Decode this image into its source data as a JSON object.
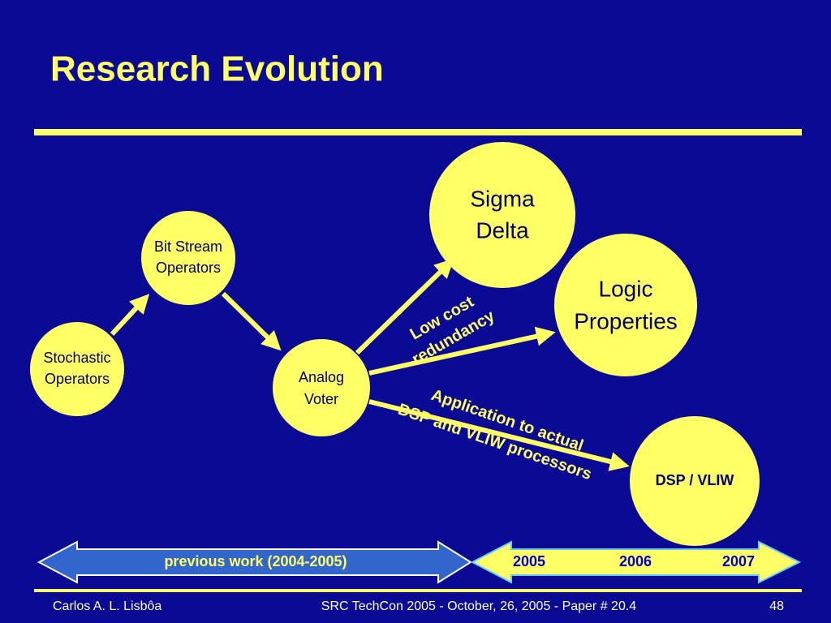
{
  "header": {
    "title": "Research Evolution"
  },
  "nodes": [
    {
      "lines": [
        "Stochastic",
        "Operators"
      ]
    },
    {
      "lines": [
        "Bit Stream",
        "Operators"
      ]
    },
    {
      "lines": [
        "Analog",
        "Voter"
      ]
    },
    {
      "lines": [
        "Sigma",
        "Delta"
      ]
    },
    {
      "lines": [
        "Logic",
        "Properties"
      ]
    },
    {
      "lines": [
        "DSP / VLIW"
      ]
    }
  ],
  "edge_labels": [
    {
      "lines": [
        "Low cost",
        "redundancy"
      ]
    },
    {
      "lines": [
        "Application to actual",
        "DSP and VLIW processors"
      ]
    }
  ],
  "timeline": {
    "previous": "previous work (2004-2005)",
    "years": [
      "2005",
      "2006",
      "2007"
    ]
  },
  "footer": {
    "author": "Carlos A. L. Lisbôa",
    "event": "SRC TechCon 2005 - October, 26, 2005 - Paper # 20.4",
    "page": "48"
  }
}
